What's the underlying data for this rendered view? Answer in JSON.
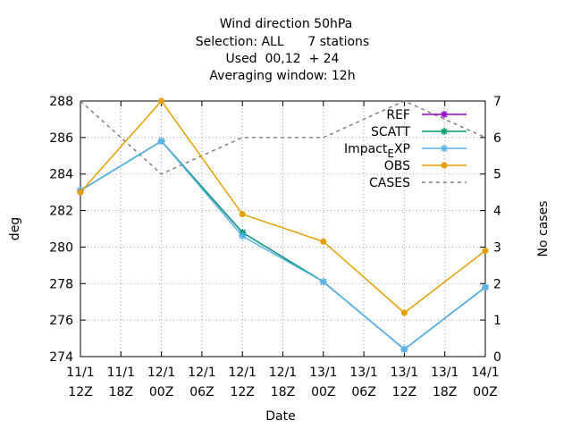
{
  "chart_data": {
    "type": "line",
    "title_lines": [
      "Wind direction 50hPa",
      "Selection: ALL      7 stations",
      "Used  00,12  + 24",
      "Averaging window: 12h"
    ],
    "xlabel": "Date",
    "ylabel": "deg",
    "y2label": "No cases",
    "ylim": [
      274,
      288
    ],
    "y2lim": [
      0,
      7
    ],
    "y_ticks": [
      "274",
      "276",
      "278",
      "280",
      "282",
      "284",
      "286",
      "288"
    ],
    "y2_ticks": [
      "0",
      "1",
      "2",
      "3",
      "4",
      "5",
      "6",
      "7"
    ],
    "x_ticks": [
      {
        "line1": "11/1",
        "line2": "12Z"
      },
      {
        "line1": "11/1",
        "line2": "18Z"
      },
      {
        "line1": "12/1",
        "line2": "00Z"
      },
      {
        "line1": "12/1",
        "line2": "06Z"
      },
      {
        "line1": "12/1",
        "line2": "12Z"
      },
      {
        "line1": "12/1",
        "line2": "18Z"
      },
      {
        "line1": "13/1",
        "line2": "00Z"
      },
      {
        "line1": "13/1",
        "line2": "06Z"
      },
      {
        "line1": "13/1",
        "line2": "12Z"
      },
      {
        "line1": "13/1",
        "line2": "18Z"
      },
      {
        "line1": "14/1",
        "line2": "00Z"
      }
    ],
    "grid": true,
    "legend_position": "top-right",
    "series": [
      {
        "name": "REF",
        "color": "#9400d3",
        "marker": "star",
        "axis": "y",
        "x": [
          0,
          2,
          4,
          6,
          8,
          10
        ],
        "values": [
          283.1,
          285.8,
          280.8,
          278.1,
          274.4,
          277.8
        ]
      },
      {
        "name": "SCATT",
        "color": "#009e73",
        "marker": "star",
        "axis": "y",
        "x": [
          0,
          2,
          4,
          6,
          8,
          10
        ],
        "values": [
          283.1,
          285.8,
          280.8,
          278.1,
          274.4,
          277.8
        ]
      },
      {
        "name": "Impact_EXP",
        "color": "#56b4e9",
        "marker": "star",
        "axis": "y",
        "x": [
          0,
          2,
          4,
          6,
          8,
          10
        ],
        "values": [
          283.1,
          285.8,
          280.6,
          278.1,
          274.4,
          277.8
        ]
      },
      {
        "name": "OBS",
        "color": "#e69f00",
        "marker": "circle",
        "axis": "y",
        "x": [
          0,
          2,
          4,
          6,
          8,
          10
        ],
        "values": [
          283.0,
          288.0,
          281.8,
          280.3,
          276.4,
          279.8
        ]
      },
      {
        "name": "CASES",
        "color": "#808080",
        "marker": "none",
        "dashed": true,
        "axis": "y2",
        "x": [
          0,
          2,
          4,
          6,
          8,
          10
        ],
        "values": [
          7,
          5,
          6,
          6,
          7,
          6
        ]
      }
    ]
  }
}
